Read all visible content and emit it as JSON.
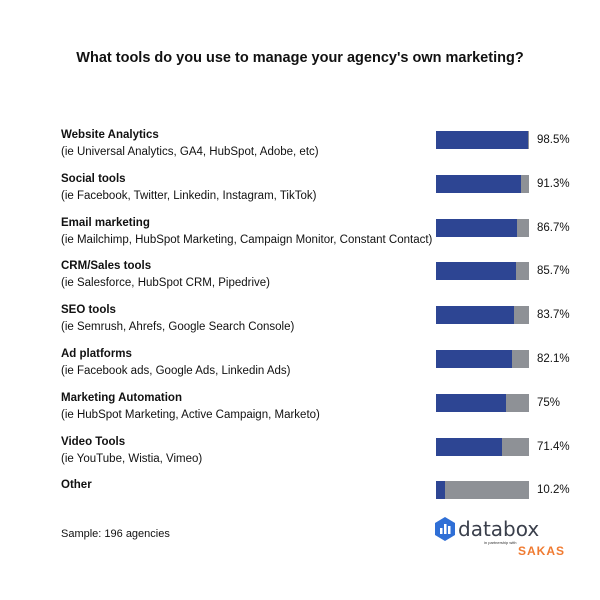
{
  "chart_data": {
    "type": "bar",
    "orientation": "horizontal",
    "title": "What tools do you use to manage your agency's own marketing?",
    "categories": [
      {
        "name": "Website Analytics",
        "detail": "(ie Universal Analytics, GA4, HubSpot, Adobe, etc)"
      },
      {
        "name": "Social tools",
        "detail": "(ie Facebook, Twitter, Linkedin, Instagram, TikTok)"
      },
      {
        "name": "Email marketing",
        "detail": "(ie Mailchimp, HubSpot Marketing, Campaign Monitor, Constant Contact)"
      },
      {
        "name": "CRM/Sales tools",
        "detail": "(ie Salesforce, HubSpot CRM, Pipedrive)"
      },
      {
        "name": "SEO tools",
        "detail": "(ie Semrush, Ahrefs, Google Search Console)"
      },
      {
        "name": "Ad platforms",
        "detail": "(ie Facebook ads, Google Ads, Linkedin Ads)"
      },
      {
        "name": "Marketing Automation",
        "detail": "(ie HubSpot Marketing, Active Campaign, Marketo)"
      },
      {
        "name": "Video Tools",
        "detail": "(ie YouTube, Wistia, Vimeo)"
      },
      {
        "name": "Other",
        "detail": ""
      }
    ],
    "values": [
      98.5,
      91.3,
      86.7,
      85.7,
      83.7,
      82.1,
      75,
      71.4,
      10.2
    ],
    "value_labels": [
      "98.5%",
      "91.3%",
      "86.7%",
      "85.7%",
      "83.7%",
      "82.1%",
      "75%",
      "71.4%",
      "10.2%"
    ],
    "xlim": [
      0,
      100
    ],
    "colors": {
      "fill": "#2d4593",
      "remainder": "#8e9196"
    }
  },
  "footer": {
    "sample": "Sample: 196 agencies",
    "logo": "databox",
    "partner": "in partnership with",
    "partner_logo": "SAKAS"
  }
}
